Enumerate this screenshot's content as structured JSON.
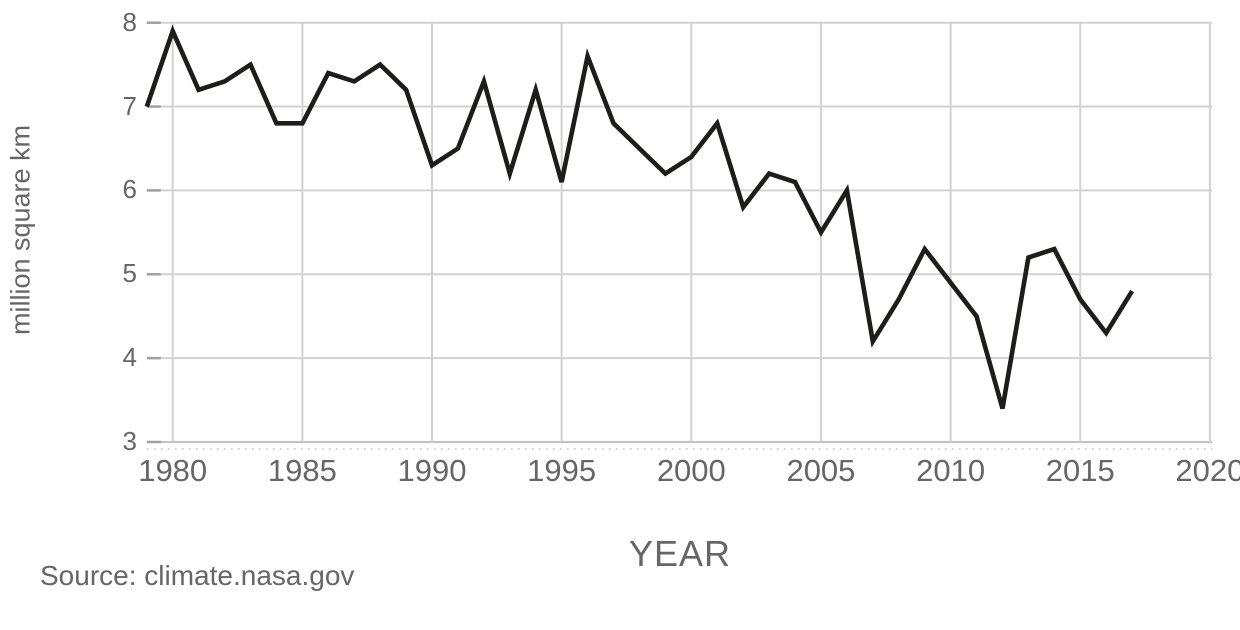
{
  "chart_data": {
    "type": "line",
    "x": [
      1979,
      1980,
      1981,
      1982,
      1983,
      1984,
      1985,
      1986,
      1987,
      1988,
      1989,
      1990,
      1991,
      1992,
      1993,
      1994,
      1995,
      1996,
      1997,
      1998,
      1999,
      2000,
      2001,
      2002,
      2003,
      2004,
      2005,
      2006,
      2007,
      2008,
      2009,
      2010,
      2011,
      2012,
      2013,
      2014,
      2015,
      2016,
      2017
    ],
    "values": [
      7.0,
      7.9,
      7.2,
      7.3,
      7.5,
      6.8,
      6.8,
      7.4,
      7.3,
      7.5,
      7.2,
      6.3,
      6.5,
      7.3,
      6.2,
      7.2,
      6.1,
      7.6,
      6.8,
      6.5,
      6.2,
      6.4,
      6.8,
      5.8,
      6.2,
      6.1,
      5.5,
      6.0,
      4.2,
      4.7,
      5.3,
      4.9,
      4.5,
      3.4,
      5.2,
      5.3,
      4.7,
      4.3,
      4.8
    ],
    "xlabel": "YEAR",
    "ylabel": "million square km",
    "source": "Source: climate.nasa.gov",
    "xlim": [
      1979,
      2020
    ],
    "ylim": [
      3,
      8
    ],
    "xticks": [
      1980,
      1985,
      1990,
      1995,
      2000,
      2005,
      2010,
      2015,
      2020
    ],
    "yticks": [
      8,
      7,
      6,
      5,
      4,
      3
    ],
    "grid": true,
    "legend": "none",
    "line_color": "#1d1d1b",
    "grid_color": "#d2d2d2",
    "baseline_color": "#c2c2c2",
    "tick_stub_color": "#a0a0a0",
    "text_color": "#666666",
    "background": "#ffffff"
  }
}
